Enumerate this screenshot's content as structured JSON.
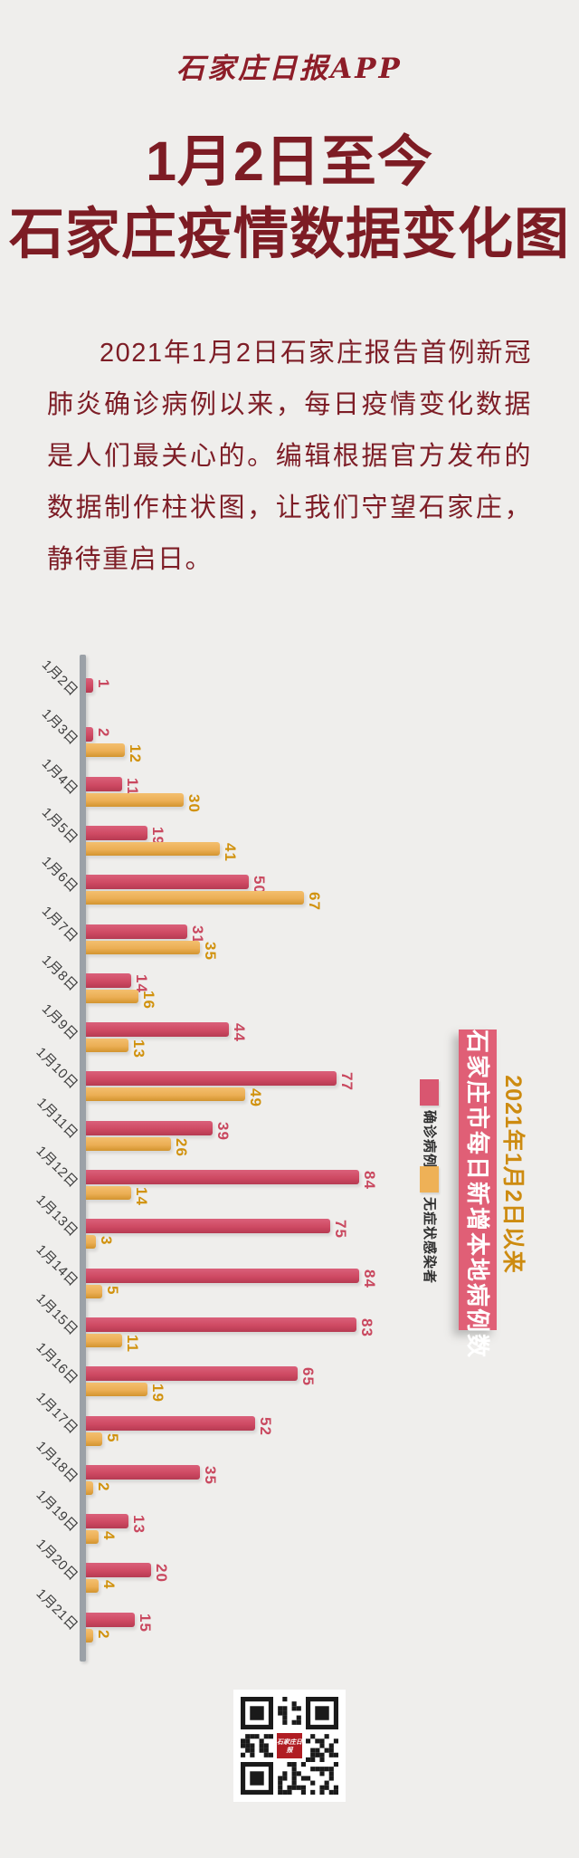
{
  "page": {
    "background": "#efeeec"
  },
  "header": {
    "logo": "石家庄日报APP"
  },
  "title": {
    "line1": "1月2日至今",
    "line2": "石家庄疫情数据变化图"
  },
  "intro": {
    "text": "2021年1月2日石家庄报告首例新冠肺炎确诊病例以来，每日疫情变化数据是人们最关心的。编辑根据官方发布的数据制作柱状图，让我们守望石家庄，静待重启日。"
  },
  "chart_data": {
    "type": "bar",
    "orientation": "horizontal",
    "title": "石家庄市每日新增本地病例数",
    "subtitle": "2021年1月2日以来",
    "categories": [
      "1月2日",
      "1月3日",
      "1月4日",
      "1月5日",
      "1月6日",
      "1月7日",
      "1月8日",
      "1月9日",
      "1月10日",
      "1月11日",
      "1月12日",
      "1月13日",
      "1月14日",
      "1月15日",
      "1月16日",
      "1月17日",
      "1月18日",
      "1月19日",
      "1月20日",
      "1月21日"
    ],
    "series": [
      {
        "name": "确诊病例",
        "color": "#cf4a63",
        "values": [
          1,
          2,
          11,
          19,
          50,
          31,
          14,
          44,
          77,
          39,
          84,
          75,
          84,
          83,
          65,
          52,
          35,
          13,
          20,
          15
        ]
      },
      {
        "name": "无症状感染者",
        "color": "#ecaf55",
        "values": [
          null,
          12,
          30,
          41,
          67,
          35,
          16,
          13,
          49,
          26,
          14,
          3,
          5,
          11,
          19,
          5,
          2,
          4,
          4,
          2
        ]
      }
    ],
    "xlim": [
      0,
      90
    ],
    "grid": false,
    "legend_position": "right",
    "value_labels": "rotated-90",
    "category_labels": "rotated-45"
  },
  "side": {
    "banner": "石家庄市每日新增本地病例数",
    "subtitle": "2021年1月2日以来",
    "legend": [
      {
        "label": "确诊病例",
        "color": "#d95670"
      },
      {
        "label": "无症状感染者",
        "color": "#eeb157"
      }
    ]
  },
  "footer": {
    "qr_logo_line1": "石家庄日报",
    "qr_logo_line2": "APP"
  },
  "colors": {
    "title_text": "#7d1c24",
    "bar_confirmed": "#cf4a63",
    "bar_asymptomatic": "#ecaf55",
    "banner_bg": "#e05f76",
    "gold_text": "#cd8b10",
    "axis": "#9ba1a7"
  }
}
